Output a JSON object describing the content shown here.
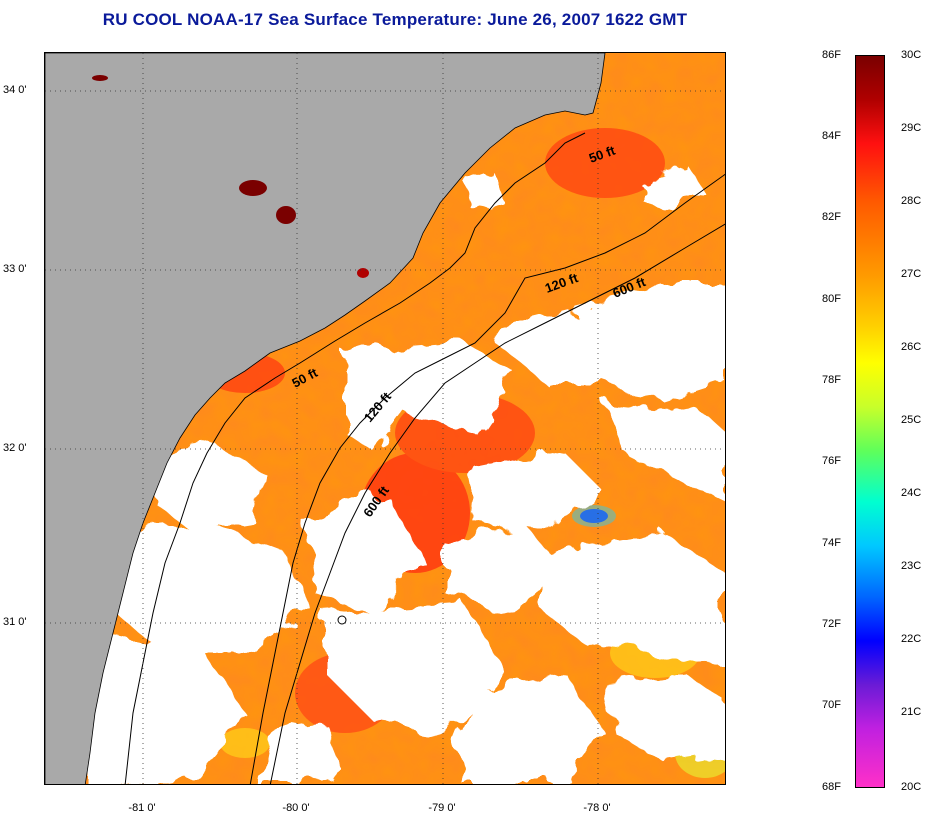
{
  "title": "RU COOL  NOAA-17  Sea Surface Temperature:  June 26, 2007 1622 GMT",
  "axes": {
    "lat_labels": [
      "34 0'",
      "33 0'",
      "32 0'",
      "31 0'"
    ],
    "lon_labels": [
      "-81 0'",
      "-80 0'",
      "-79 0'",
      "-78 0'"
    ]
  },
  "contours": {
    "label_50": "50 ft",
    "label_120": "120 ft",
    "label_600": "600 ft"
  },
  "colorbar": {
    "fahrenheit": [
      "86F",
      "84F",
      "82F",
      "80F",
      "78F",
      "76F",
      "74F",
      "72F",
      "70F",
      "68F"
    ],
    "celsius": [
      "30C",
      "29C",
      "28C",
      "27C",
      "26C",
      "25C",
      "24C",
      "23C",
      "22C",
      "21C",
      "20C"
    ]
  },
  "colors": {
    "land": "#a9a9a9",
    "cloud": "#ffffff",
    "warm_sst": "#ff8c1a",
    "hot_sst": "#ff3010",
    "title": "#0a1a9a"
  }
}
